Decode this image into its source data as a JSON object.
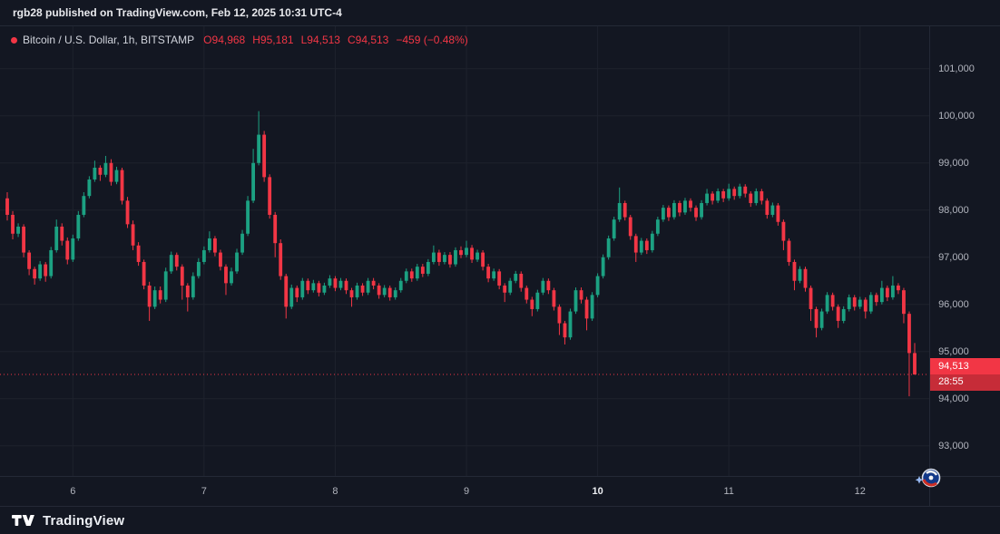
{
  "attribution": {
    "text": "rgb28 published on TradingView.com, Feb 12, 2025 10:31 UTC-4"
  },
  "legend": {
    "title": "Bitcoin / U.S. Dollar, 1h, BITSTAMP",
    "items": [
      {
        "label": "O",
        "value": "94,968"
      },
      {
        "label": "H",
        "value": "95,181"
      },
      {
        "label": "L",
        "value": "94,513"
      },
      {
        "label": "C",
        "value": "94,513"
      }
    ],
    "change": "−459 (−0.48%)"
  },
  "current_price": {
    "value": "94,513",
    "countdown": "28:55"
  },
  "price_axis": {
    "ticks": [
      {
        "price": 101000,
        "label": "101,000"
      },
      {
        "price": 100000,
        "label": "100,000"
      },
      {
        "price": 99000,
        "label": "99,000"
      },
      {
        "price": 98000,
        "label": "98,000"
      },
      {
        "price": 97000,
        "label": "97,000"
      },
      {
        "price": 96000,
        "label": "96,000"
      },
      {
        "price": 95000,
        "label": "95,000"
      },
      {
        "price": 94000,
        "label": "94,000"
      },
      {
        "price": 93000,
        "label": "93,000"
      }
    ]
  },
  "time_axis": {
    "ticks": [
      {
        "index": 12,
        "label": "6",
        "bold": false
      },
      {
        "index": 36,
        "label": "7",
        "bold": false
      },
      {
        "index": 60,
        "label": "8",
        "bold": false
      },
      {
        "index": 84,
        "label": "9",
        "bold": false
      },
      {
        "index": 108,
        "label": "10",
        "bold": true
      },
      {
        "index": 132,
        "label": "11",
        "bold": false
      },
      {
        "index": 156,
        "label": "12",
        "bold": false
      }
    ]
  },
  "footer": {
    "brand": "TradingView"
  },
  "colors": {
    "up": "#1ca182",
    "down": "#f23645",
    "background": "#131722",
    "grid": "#1e222d",
    "axis_text": "#b2b5be",
    "accent_red": "#f23645"
  },
  "chart_data": {
    "type": "candlestick",
    "title": "Bitcoin / U.S. Dollar",
    "interval": "1h",
    "exchange": "BITSTAMP",
    "open": 94968,
    "high": 95181,
    "low": 94513,
    "close": 94513,
    "change": -459,
    "change_pct": -0.48,
    "y_range": [
      92360,
      101900
    ],
    "x_day_labels": [
      "6",
      "7",
      "8",
      "9",
      "10",
      "11",
      "12"
    ],
    "candles": [
      [
        98250,
        98380,
        97780,
        97900
      ],
      [
        97900,
        97980,
        97380,
        97500
      ],
      [
        97500,
        97720,
        97430,
        97650
      ],
      [
        97650,
        97700,
        97000,
        97100
      ],
      [
        97100,
        97150,
        96620,
        96750
      ],
      [
        96750,
        96800,
        96420,
        96550
      ],
      [
        96550,
        96920,
        96500,
        96850
      ],
      [
        96850,
        96900,
        96480,
        96600
      ],
      [
        96600,
        97220,
        96550,
        97150
      ],
      [
        97150,
        97800,
        97100,
        97650
      ],
      [
        97650,
        97720,
        97250,
        97350
      ],
      [
        97350,
        97420,
        96850,
        96950
      ],
      [
        96950,
        97480,
        96900,
        97400
      ],
      [
        97400,
        97980,
        97350,
        97900
      ],
      [
        97900,
        98380,
        97850,
        98300
      ],
      [
        98300,
        98720,
        98250,
        98650
      ],
      [
        98650,
        99050,
        98600,
        98900
      ],
      [
        98900,
        98950,
        98620,
        98750
      ],
      [
        98750,
        99150,
        98700,
        99000
      ],
      [
        99000,
        99080,
        98520,
        98600
      ],
      [
        98600,
        98920,
        98550,
        98850
      ],
      [
        98850,
        98900,
        98120,
        98200
      ],
      [
        98200,
        98280,
        97620,
        97700
      ],
      [
        97700,
        97780,
        97150,
        97250
      ],
      [
        97250,
        97320,
        96820,
        96900
      ],
      [
        96900,
        96950,
        96320,
        96400
      ],
      [
        96400,
        96480,
        95650,
        95950
      ],
      [
        95950,
        96380,
        95900,
        96300
      ],
      [
        96300,
        96380,
        96020,
        96100
      ],
      [
        96100,
        96780,
        96050,
        96700
      ],
      [
        96700,
        97120,
        96650,
        97050
      ],
      [
        97050,
        97100,
        96720,
        96800
      ],
      [
        96800,
        96850,
        96100,
        96400
      ],
      [
        96400,
        96450,
        95850,
        96150
      ],
      [
        96150,
        96680,
        96100,
        96600
      ],
      [
        96600,
        96980,
        96550,
        96900
      ],
      [
        96900,
        97230,
        96850,
        97150
      ],
      [
        97150,
        97550,
        97100,
        97400
      ],
      [
        97400,
        97450,
        97020,
        97100
      ],
      [
        97100,
        97160,
        96720,
        96800
      ],
      [
        96800,
        96850,
        96200,
        96450
      ],
      [
        96450,
        96780,
        96400,
        96700
      ],
      [
        96700,
        97180,
        96650,
        97100
      ],
      [
        97100,
        97580,
        97050,
        97500
      ],
      [
        97500,
        98300,
        97450,
        98200
      ],
      [
        98200,
        99300,
        98150,
        99000
      ],
      [
        99000,
        100100,
        98950,
        99600
      ],
      [
        99600,
        99680,
        98600,
        98700
      ],
      [
        98700,
        98760,
        97820,
        97900
      ],
      [
        97900,
        97960,
        97000,
        97300
      ],
      [
        97300,
        97380,
        96520,
        96600
      ],
      [
        96600,
        96650,
        95700,
        95950
      ],
      [
        95950,
        96420,
        95900,
        96350
      ],
      [
        96350,
        96400,
        96050,
        96150
      ],
      [
        96150,
        96560,
        96100,
        96500
      ],
      [
        96500,
        96550,
        96220,
        96300
      ],
      [
        96300,
        96520,
        96250,
        96450
      ],
      [
        96450,
        96500,
        96170,
        96250
      ],
      [
        96250,
        96460,
        96200,
        96400
      ],
      [
        96400,
        96620,
        96350,
        96550
      ],
      [
        96550,
        96600,
        96280,
        96350
      ],
      [
        96350,
        96560,
        96300,
        96500
      ],
      [
        96500,
        96550,
        96220,
        96300
      ],
      [
        96300,
        96350,
        95950,
        96150
      ],
      [
        96150,
        96460,
        96100,
        96400
      ],
      [
        96400,
        96450,
        96180,
        96250
      ],
      [
        96250,
        96560,
        96200,
        96500
      ],
      [
        96500,
        96560,
        96320,
        96400
      ],
      [
        96400,
        96450,
        96120,
        96200
      ],
      [
        96200,
        96410,
        96150,
        96350
      ],
      [
        96350,
        96400,
        96080,
        96150
      ],
      [
        96150,
        96360,
        96100,
        96300
      ],
      [
        96300,
        96560,
        96250,
        96500
      ],
      [
        96500,
        96760,
        96450,
        96700
      ],
      [
        96700,
        96760,
        96480,
        96550
      ],
      [
        96550,
        96860,
        96500,
        96800
      ],
      [
        96800,
        96860,
        96580,
        96650
      ],
      [
        96650,
        96960,
        96600,
        96900
      ],
      [
        96900,
        97250,
        96850,
        97100
      ],
      [
        97100,
        97160,
        96820,
        96900
      ],
      [
        96900,
        97110,
        96850,
        97050
      ],
      [
        97050,
        97110,
        96780,
        96850
      ],
      [
        96850,
        97210,
        96800,
        97150
      ],
      [
        97150,
        97230,
        96980,
        97050
      ],
      [
        97050,
        97350,
        97000,
        97200
      ],
      [
        97200,
        97260,
        96880,
        96950
      ],
      [
        96950,
        97160,
        96900,
        97100
      ],
      [
        97100,
        97150,
        96720,
        96800
      ],
      [
        96800,
        96860,
        96470,
        96550
      ],
      [
        96550,
        96760,
        96500,
        96700
      ],
      [
        96700,
        96750,
        96320,
        96400
      ],
      [
        96400,
        96450,
        96050,
        96250
      ],
      [
        96250,
        96560,
        96200,
        96500
      ],
      [
        96500,
        96710,
        96450,
        96650
      ],
      [
        96650,
        96700,
        96270,
        96350
      ],
      [
        96350,
        96400,
        96020,
        96100
      ],
      [
        96100,
        96160,
        95750,
        95900
      ],
      [
        95900,
        96310,
        95850,
        96250
      ],
      [
        96250,
        96560,
        96200,
        96500
      ],
      [
        96500,
        96550,
        96220,
        96300
      ],
      [
        96300,
        96350,
        95870,
        95950
      ],
      [
        95950,
        96000,
        95350,
        95600
      ],
      [
        95600,
        95650,
        95150,
        95300
      ],
      [
        95300,
        95910,
        95250,
        95850
      ],
      [
        95850,
        96360,
        95800,
        96300
      ],
      [
        96300,
        96360,
        96020,
        96100
      ],
      [
        96100,
        96160,
        95450,
        95700
      ],
      [
        95700,
        96260,
        95650,
        96200
      ],
      [
        96200,
        96660,
        96150,
        96600
      ],
      [
        96600,
        97060,
        96550,
        97000
      ],
      [
        97000,
        97460,
        96950,
        97400
      ],
      [
        97400,
        97860,
        97350,
        97800
      ],
      [
        97800,
        98480,
        97750,
        98150
      ],
      [
        98150,
        98200,
        97780,
        97850
      ],
      [
        97850,
        97900,
        97370,
        97450
      ],
      [
        97450,
        97500,
        96900,
        97100
      ],
      [
        97100,
        97410,
        97050,
        97350
      ],
      [
        97350,
        97400,
        97070,
        97150
      ],
      [
        97150,
        97560,
        97100,
        97500
      ],
      [
        97500,
        97860,
        97450,
        97800
      ],
      [
        97800,
        98110,
        97750,
        98050
      ],
      [
        98050,
        98100,
        97770,
        97850
      ],
      [
        97850,
        98210,
        97800,
        98150
      ],
      [
        98150,
        98200,
        97870,
        97950
      ],
      [
        97950,
        98260,
        97900,
        98200
      ],
      [
        98200,
        98250,
        97970,
        98050
      ],
      [
        98050,
        98100,
        97770,
        97850
      ],
      [
        97850,
        98210,
        97800,
        98150
      ],
      [
        98150,
        98450,
        98100,
        98350
      ],
      [
        98350,
        98400,
        98120,
        98200
      ],
      [
        98200,
        98460,
        98150,
        98400
      ],
      [
        98400,
        98450,
        98170,
        98250
      ],
      [
        98250,
        98560,
        98200,
        98450
      ],
      [
        98450,
        98500,
        98220,
        98300
      ],
      [
        98300,
        98560,
        98250,
        98500
      ],
      [
        98500,
        98550,
        98270,
        98350
      ],
      [
        98350,
        98400,
        98070,
        98150
      ],
      [
        98150,
        98460,
        98100,
        98400
      ],
      [
        98400,
        98450,
        98120,
        98200
      ],
      [
        98200,
        98250,
        97820,
        97900
      ],
      [
        97900,
        98160,
        97850,
        98100
      ],
      [
        98100,
        98150,
        97670,
        97750
      ],
      [
        97750,
        97800,
        97150,
        97350
      ],
      [
        97350,
        97400,
        96820,
        96900
      ],
      [
        96900,
        96950,
        96300,
        96500
      ],
      [
        96500,
        96810,
        96450,
        96750
      ],
      [
        96750,
        96800,
        96270,
        96350
      ],
      [
        96350,
        96400,
        95650,
        95900
      ],
      [
        95900,
        95950,
        95300,
        95500
      ],
      [
        95500,
        95910,
        95450,
        95850
      ],
      [
        95850,
        96260,
        95800,
        96200
      ],
      [
        96200,
        96250,
        95870,
        95950
      ],
      [
        95950,
        96000,
        95500,
        95650
      ],
      [
        95650,
        95960,
        95600,
        95900
      ],
      [
        95900,
        96210,
        95850,
        96150
      ],
      [
        96150,
        96200,
        95870,
        95950
      ],
      [
        95950,
        96160,
        95900,
        96100
      ],
      [
        96100,
        96150,
        95700,
        95850
      ],
      [
        95850,
        96260,
        95800,
        96200
      ],
      [
        96200,
        96250,
        95970,
        96050
      ],
      [
        96050,
        96500,
        96000,
        96350
      ],
      [
        96350,
        96400,
        96070,
        96150
      ],
      [
        96150,
        96600,
        96100,
        96400
      ],
      [
        96400,
        96450,
        96220,
        96300
      ],
      [
        96300,
        96350,
        95600,
        95800
      ],
      [
        95800,
        95850,
        94050,
        94968
      ],
      [
        94968,
        95181,
        94513,
        94513
      ]
    ]
  }
}
